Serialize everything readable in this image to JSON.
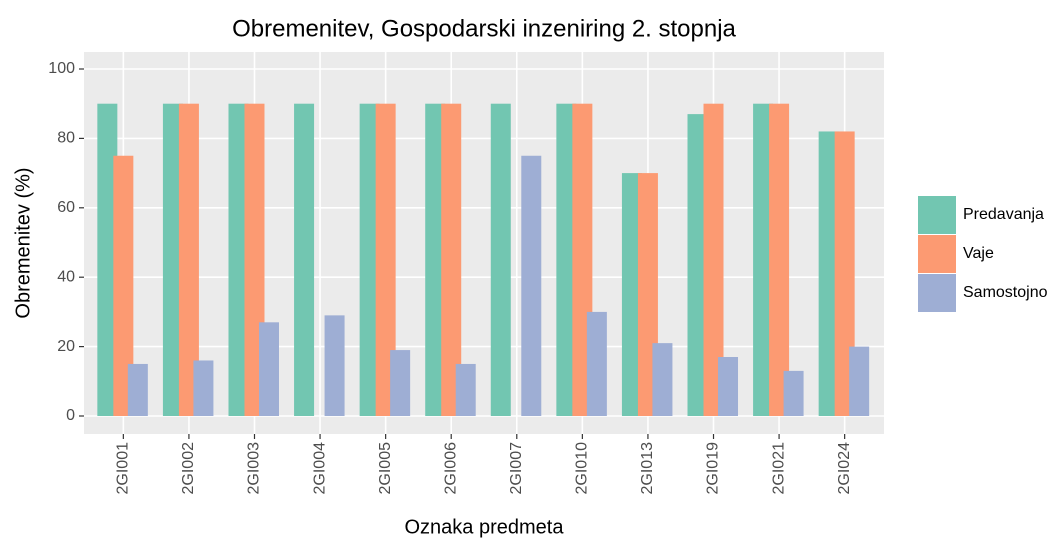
{
  "chart_data": {
    "type": "bar",
    "title": "Obremenitev, Gospodarski inzeniring 2. stopnja",
    "x_label": "Oznaka predmeta",
    "y_label": "Obremenitev (%)",
    "categories": [
      "2GI001",
      "2GI002",
      "2GI003",
      "2GI004",
      "2GI005",
      "2GI006",
      "2GI007",
      "2GI010",
      "2GI013",
      "2GI019",
      "2GI021",
      "2GI024"
    ],
    "series": [
      {
        "name": "Predavanja",
        "color": "#72c6b1",
        "values": [
          90,
          90,
          90,
          90,
          90,
          90,
          90,
          90,
          70,
          87,
          90,
          82
        ]
      },
      {
        "name": "Vaje",
        "color": "#fc9a72",
        "values": [
          75,
          90,
          90,
          null,
          90,
          90,
          null,
          90,
          70,
          90,
          90,
          82
        ]
      },
      {
        "name": "Samostojno",
        "color": "#9eaed4",
        "values": [
          15,
          16,
          27,
          29,
          19,
          15,
          75,
          30,
          21,
          17,
          13,
          20
        ]
      }
    ],
    "ylim": [
      0,
      100
    ],
    "yticks": [
      0,
      20,
      40,
      60,
      80,
      100
    ],
    "grid": true,
    "legend": "right"
  }
}
